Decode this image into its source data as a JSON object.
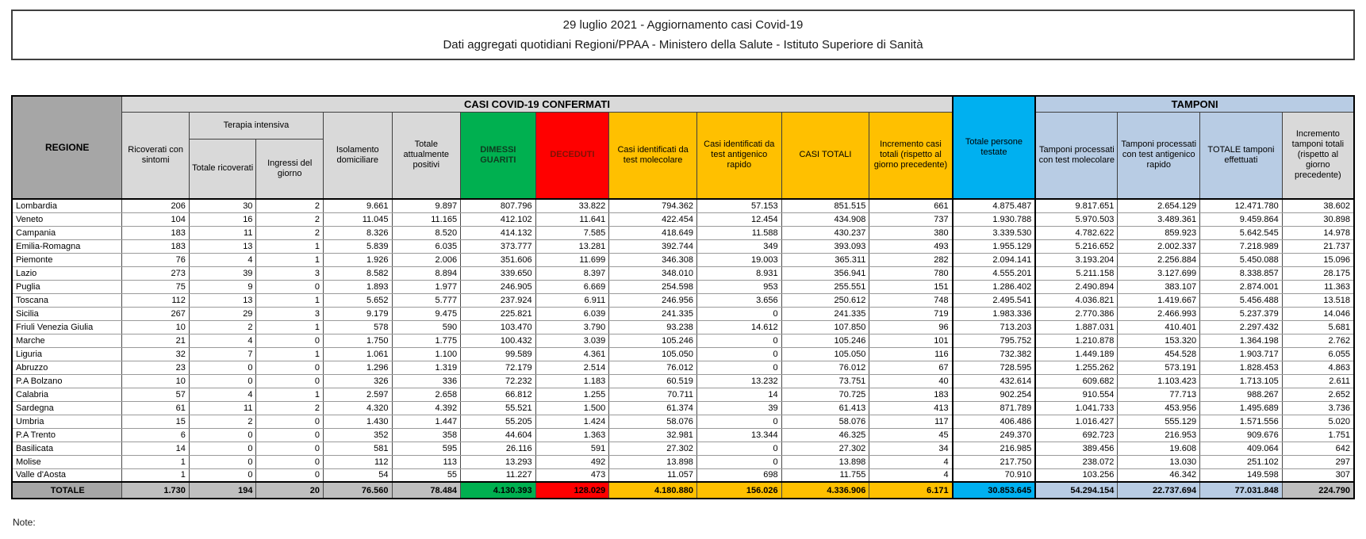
{
  "title": {
    "line1": "29 luglio 2021 - Aggiornamento casi Covid-19",
    "line2": "Dati aggregati quotidiani Regioni/PPAA - Ministero della Salute - Istituto Superiore di Sanità"
  },
  "note_label": "Note:",
  "colors": {
    "green": "#00B050",
    "red": "#FF0000",
    "amber": "#FFC000",
    "cyan": "#00B0F0",
    "light_blue": "#B8CCE4",
    "header_gray": "#D9D9D9",
    "region_gray": "#A6A6A6",
    "total_gray": "#BFBFBF"
  },
  "table": {
    "col_regione": "REGIONE",
    "group_casi": "CASI COVID-19 CONFERMATI",
    "group_tamponi": "TAMPONI",
    "col_ricoverati": "Ricoverati con sintomi",
    "col_terapia_group": "Terapia intensiva",
    "col_terapia_tot": "Totale ricoverati",
    "col_terapia_ingr": "Ingressi del giorno",
    "col_isolamento": "Isolamento domiciliare",
    "col_attualmente": "Totale attualmente positivi",
    "col_dimessi": "DIMESSI GUARITI",
    "col_deceduti": "DECEDUTI",
    "col_molecolare": "Casi identificati da test molecolare",
    "col_antigenico": "Casi identificati da test antigenico rapido",
    "col_casi_totali": "CASI TOTALI",
    "col_incremento_casi": "Incremento casi totali (rispetto al giorno precedente)",
    "col_persone_testate": "Totale persone testate",
    "col_tamponi_mol": "Tamponi processati con test molecolare",
    "col_tamponi_ant": "Tamponi processati con test antigenico rapido",
    "col_tamponi_tot": "TOTALE tamponi effettuati",
    "col_incremento_tamponi": "Incremento tamponi totali (rispetto al giorno precedente)",
    "rows": [
      [
        "Lombardia",
        "206",
        "30",
        "2",
        "9.661",
        "9.897",
        "807.796",
        "33.822",
        "794.362",
        "57.153",
        "851.515",
        "661",
        "4.875.487",
        "9.817.651",
        "2.654.129",
        "12.471.780",
        "38.602"
      ],
      [
        "Veneto",
        "104",
        "16",
        "2",
        "11.045",
        "11.165",
        "412.102",
        "11.641",
        "422.454",
        "12.454",
        "434.908",
        "737",
        "1.930.788",
        "5.970.503",
        "3.489.361",
        "9.459.864",
        "30.898"
      ],
      [
        "Campania",
        "183",
        "11",
        "2",
        "8.326",
        "8.520",
        "414.132",
        "7.585",
        "418.649",
        "11.588",
        "430.237",
        "380",
        "3.339.530",
        "4.782.622",
        "859.923",
        "5.642.545",
        "14.978"
      ],
      [
        "Emilia-Romagna",
        "183",
        "13",
        "1",
        "5.839",
        "6.035",
        "373.777",
        "13.281",
        "392.744",
        "349",
        "393.093",
        "493",
        "1.955.129",
        "5.216.652",
        "2.002.337",
        "7.218.989",
        "21.737"
      ],
      [
        "Piemonte",
        "76",
        "4",
        "1",
        "1.926",
        "2.006",
        "351.606",
        "11.699",
        "346.308",
        "19.003",
        "365.311",
        "282",
        "2.094.141",
        "3.193.204",
        "2.256.884",
        "5.450.088",
        "15.096"
      ],
      [
        "Lazio",
        "273",
        "39",
        "3",
        "8.582",
        "8.894",
        "339.650",
        "8.397",
        "348.010",
        "8.931",
        "356.941",
        "780",
        "4.555.201",
        "5.211.158",
        "3.127.699",
        "8.338.857",
        "28.175"
      ],
      [
        "Puglia",
        "75",
        "9",
        "0",
        "1.893",
        "1.977",
        "246.905",
        "6.669",
        "254.598",
        "953",
        "255.551",
        "151",
        "1.286.402",
        "2.490.894",
        "383.107",
        "2.874.001",
        "11.363"
      ],
      [
        "Toscana",
        "112",
        "13",
        "1",
        "5.652",
        "5.777",
        "237.924",
        "6.911",
        "246.956",
        "3.656",
        "250.612",
        "748",
        "2.495.541",
        "4.036.821",
        "1.419.667",
        "5.456.488",
        "13.518"
      ],
      [
        "Sicilia",
        "267",
        "29",
        "3",
        "9.179",
        "9.475",
        "225.821",
        "6.039",
        "241.335",
        "0",
        "241.335",
        "719",
        "1.983.336",
        "2.770.386",
        "2.466.993",
        "5.237.379",
        "14.046"
      ],
      [
        "Friuli Venezia Giulia",
        "10",
        "2",
        "1",
        "578",
        "590",
        "103.470",
        "3.790",
        "93.238",
        "14.612",
        "107.850",
        "96",
        "713.203",
        "1.887.031",
        "410.401",
        "2.297.432",
        "5.681"
      ],
      [
        "Marche",
        "21",
        "4",
        "0",
        "1.750",
        "1.775",
        "100.432",
        "3.039",
        "105.246",
        "0",
        "105.246",
        "101",
        "795.752",
        "1.210.878",
        "153.320",
        "1.364.198",
        "2.762"
      ],
      [
        "Liguria",
        "32",
        "7",
        "1",
        "1.061",
        "1.100",
        "99.589",
        "4.361",
        "105.050",
        "0",
        "105.050",
        "116",
        "732.382",
        "1.449.189",
        "454.528",
        "1.903.717",
        "6.055"
      ],
      [
        "Abruzzo",
        "23",
        "0",
        "0",
        "1.296",
        "1.319",
        "72.179",
        "2.514",
        "76.012",
        "0",
        "76.012",
        "67",
        "728.595",
        "1.255.262",
        "573.191",
        "1.828.453",
        "4.863"
      ],
      [
        "P.A Bolzano",
        "10",
        "0",
        "0",
        "326",
        "336",
        "72.232",
        "1.183",
        "60.519",
        "13.232",
        "73.751",
        "40",
        "432.614",
        "609.682",
        "1.103.423",
        "1.713.105",
        "2.611"
      ],
      [
        "Calabria",
        "57",
        "4",
        "1",
        "2.597",
        "2.658",
        "66.812",
        "1.255",
        "70.711",
        "14",
        "70.725",
        "183",
        "902.254",
        "910.554",
        "77.713",
        "988.267",
        "2.652"
      ],
      [
        "Sardegna",
        "61",
        "11",
        "2",
        "4.320",
        "4.392",
        "55.521",
        "1.500",
        "61.374",
        "39",
        "61.413",
        "413",
        "871.789",
        "1.041.733",
        "453.956",
        "1.495.689",
        "3.736"
      ],
      [
        "Umbria",
        "15",
        "2",
        "0",
        "1.430",
        "1.447",
        "55.205",
        "1.424",
        "58.076",
        "0",
        "58.076",
        "117",
        "406.486",
        "1.016.427",
        "555.129",
        "1.571.556",
        "5.020"
      ],
      [
        "P.A Trento",
        "6",
        "0",
        "0",
        "352",
        "358",
        "44.604",
        "1.363",
        "32.981",
        "13.344",
        "46.325",
        "45",
        "249.370",
        "692.723",
        "216.953",
        "909.676",
        "1.751"
      ],
      [
        "Basilicata",
        "14",
        "0",
        "0",
        "581",
        "595",
        "26.116",
        "591",
        "27.302",
        "0",
        "27.302",
        "34",
        "216.985",
        "389.456",
        "19.608",
        "409.064",
        "642"
      ],
      [
        "Molise",
        "1",
        "0",
        "0",
        "112",
        "113",
        "13.293",
        "492",
        "13.898",
        "0",
        "13.898",
        "4",
        "217.750",
        "238.072",
        "13.030",
        "251.102",
        "297"
      ],
      [
        "Valle d'Aosta",
        "1",
        "0",
        "0",
        "54",
        "55",
        "11.227",
        "473",
        "11.057",
        "698",
        "11.755",
        "4",
        "70.910",
        "103.256",
        "46.342",
        "149.598",
        "307"
      ]
    ],
    "total_row": [
      "TOTALE",
      "1.730",
      "194",
      "20",
      "76.560",
      "78.484",
      "4.130.393",
      "128.029",
      "4.180.880",
      "156.026",
      "4.336.906",
      "6.171",
      "30.853.645",
      "54.294.154",
      "22.737.694",
      "77.031.848",
      "224.790"
    ]
  }
}
